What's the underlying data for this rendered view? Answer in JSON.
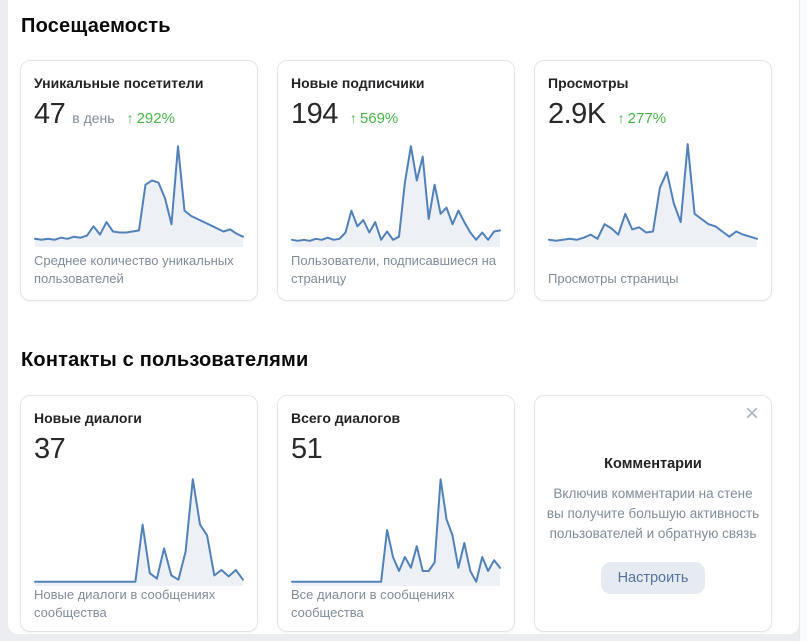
{
  "sections": {
    "attendance": {
      "title": "Посещаемость",
      "cards": [
        {
          "title": "Уникальные посетители",
          "value": "47",
          "value_suffix": "в день",
          "trend_arrow": "↑",
          "trend": "292%",
          "description": "Среднее количество уникальных пользователей"
        },
        {
          "title": "Новые подписчики",
          "value": "194",
          "value_suffix": "",
          "trend_arrow": "↑",
          "trend": "569%",
          "description": "Пользователи, подписавшиеся на страницу"
        },
        {
          "title": "Просмотры",
          "value": "2.9K",
          "value_suffix": "",
          "trend_arrow": "↑",
          "trend": "277%",
          "description": "Просмотры страницы"
        }
      ]
    },
    "contacts": {
      "title": "Контакты с пользователями",
      "cards": [
        {
          "title": "Новые диалоги",
          "value": "37",
          "description": "Новые диалоги в сообщениях сообщества"
        },
        {
          "title": "Всего диалогов",
          "value": "51",
          "description": "Все диалоги в сообщениях сообщества"
        }
      ],
      "promo": {
        "close_icon": "×",
        "title": "Комментарии",
        "text": "Включив комментарии на стене вы получите большую активность пользователей и обратную связь",
        "button_label": "Настроить"
      }
    }
  },
  "colors": {
    "line": "#5181b8",
    "fill": "#edf0f4",
    "positive": "#4bb34b",
    "text_secondary": "#818c99",
    "page_bg": "#ebedf0",
    "card_border": "#e4e5e9",
    "button_bg": "#e5ebf1",
    "button_text": "#55729b"
  },
  "chart_data": [
    {
      "type": "line",
      "title": "Уникальные посетители",
      "note": "sparkline, axes unlabeled; values are relative heights 0-100",
      "x": "time (unlabeled)",
      "values": [
        6,
        5,
        6,
        5,
        7,
        6,
        8,
        7,
        9,
        18,
        10,
        22,
        13,
        12,
        12,
        13,
        14,
        58,
        62,
        60,
        45,
        20,
        95,
        33,
        28,
        25,
        22,
        19,
        16,
        13,
        15,
        11,
        8
      ]
    },
    {
      "type": "line",
      "title": "Новые подписчики",
      "note": "sparkline, axes unlabeled; values are relative heights 0-100",
      "x": "time (unlabeled)",
      "values": [
        5,
        4,
        5,
        4,
        6,
        5,
        7,
        5,
        6,
        12,
        33,
        18,
        24,
        12,
        22,
        5,
        13,
        5,
        8,
        60,
        95,
        62,
        85,
        25,
        58,
        30,
        36,
        20,
        33,
        22,
        12,
        5,
        12,
        5,
        13,
        14
      ]
    },
    {
      "type": "line",
      "title": "Просмотры",
      "note": "sparkline, axes unlabeled; values are relative heights 0-100",
      "x": "time (unlabeled)",
      "values": [
        5,
        4,
        5,
        6,
        5,
        7,
        10,
        6,
        20,
        16,
        10,
        30,
        15,
        17,
        12,
        13,
        55,
        70,
        40,
        22,
        97,
        30,
        25,
        20,
        18,
        13,
        8,
        13,
        10,
        8,
        6
      ]
    },
    {
      "type": "line",
      "title": "Новые диалоги",
      "note": "sparkline, axes unlabeled; values are relative heights 0-100",
      "x": "time (unlabeled)",
      "values": [
        2,
        2,
        2,
        2,
        2,
        2,
        2,
        2,
        2,
        2,
        2,
        2,
        2,
        2,
        2,
        55,
        10,
        5,
        33,
        8,
        4,
        30,
        97,
        55,
        45,
        8,
        13,
        7,
        13,
        4
      ]
    },
    {
      "type": "line",
      "title": "Всего диалогов",
      "note": "sparkline, axes unlabeled; values are relative heights 0-100",
      "x": "time (unlabeled)",
      "values": [
        2,
        2,
        2,
        2,
        2,
        2,
        2,
        2,
        2,
        2,
        2,
        2,
        2,
        2,
        2,
        2,
        50,
        25,
        12,
        25,
        15,
        35,
        12,
        12,
        20,
        97,
        60,
        45,
        15,
        38,
        12,
        2,
        25,
        12,
        22,
        15
      ]
    }
  ]
}
